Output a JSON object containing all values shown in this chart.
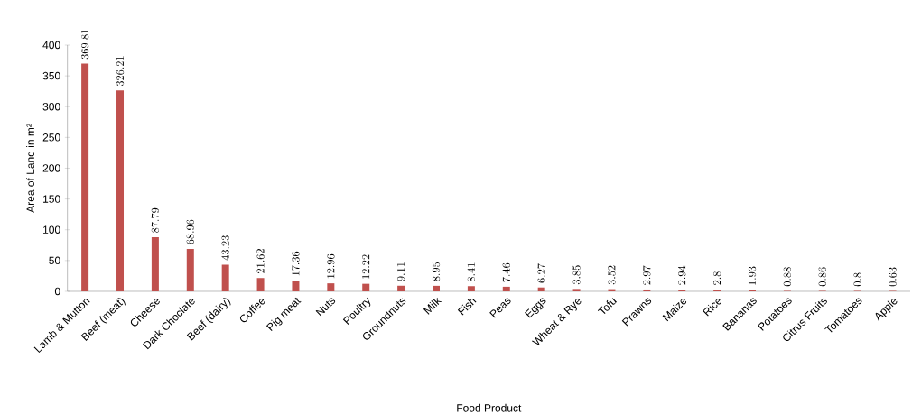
{
  "chart_data": {
    "type": "bar",
    "xlabel": "Food Product",
    "ylabel": "Area of Land in m²",
    "categories": [
      "Lamb & Mutton",
      "Beef (meat)",
      "Cheese",
      "Dark Choclate",
      "Beef (dairy)",
      "Coffee",
      "Pig meat",
      "Nuts",
      "Poultry",
      "Groundnuts",
      "Milk",
      "Fish",
      "Peas",
      "Eggs",
      "Wheat & Rye",
      "Tofu",
      "Prawns",
      "Maize",
      "Rice",
      "Bananas",
      "Potatoes",
      "Citrus Fruits",
      "Tomatoes",
      "Apple"
    ],
    "values": [
      369.81,
      326.21,
      87.79,
      68.96,
      43.23,
      21.62,
      17.36,
      12.96,
      12.22,
      9.11,
      8.95,
      8.41,
      7.46,
      6.27,
      3.85,
      3.52,
      2.97,
      2.94,
      2.8,
      1.93,
      0.88,
      0.86,
      0.8,
      0.63
    ],
    "color": "#c0504d",
    "ylim": [
      0,
      400
    ],
    "yticks": [
      0,
      50,
      100,
      150,
      200,
      250,
      300,
      350,
      400
    ],
    "data_labels": true
  }
}
